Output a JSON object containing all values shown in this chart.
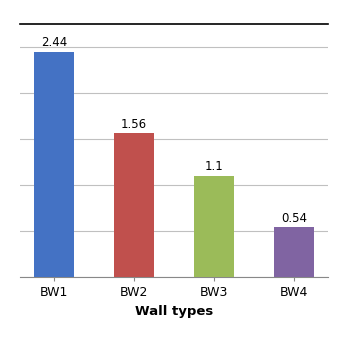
{
  "categories": [
    "BW1",
    "BW2",
    "BW3",
    "BW4"
  ],
  "values": [
    2.44,
    1.56,
    1.1,
    0.54
  ],
  "bar_colors": [
    "#4472C4",
    "#C0504D",
    "#9BBB59",
    "#8064A2"
  ],
  "xlabel": "Wall types",
  "ylabel": "",
  "ylim": [
    0,
    2.75
  ],
  "yticks": [
    0.0,
    0.5,
    1.0,
    1.5,
    2.0,
    2.5
  ],
  "grid_color": "#C0C0C0",
  "background_color": "#FFFFFF",
  "label_fontsize": 8.5,
  "xlabel_fontsize": 9.5,
  "tick_fontsize": 9,
  "bar_width": 0.5
}
